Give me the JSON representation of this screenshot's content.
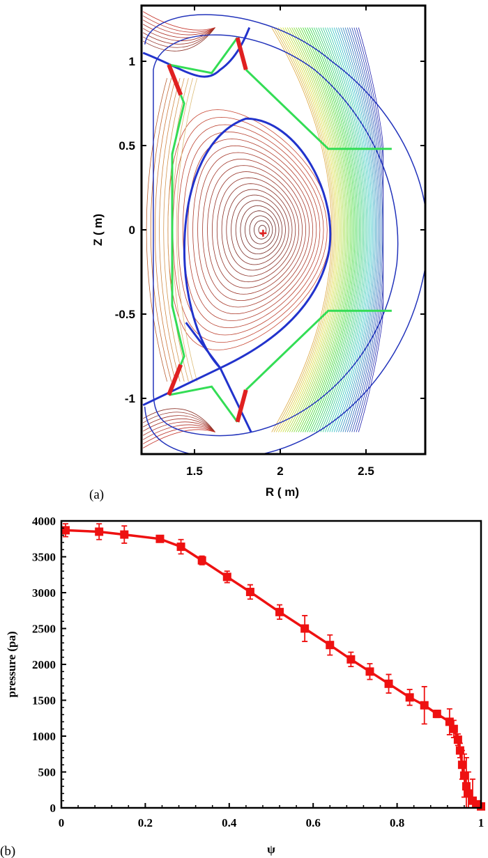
{
  "chart_data": [
    {
      "type": "contour",
      "panel_label": "(a)",
      "xlabel": "R ( m)",
      "ylabel": "Z ( m)",
      "xlim": [
        1.19,
        2.86
      ],
      "ylim": [
        -1.33,
        1.33
      ],
      "xticks": [
        "1.5",
        "2",
        "2.5"
      ],
      "xtick_values": [
        1.5,
        2,
        2.5
      ],
      "yticks": [
        "1",
        "0.5",
        "0",
        "-0.5",
        "-1"
      ],
      "ytick_values": [
        1,
        0.5,
        0,
        -0.5,
        -1
      ],
      "magnetic_axis": [
        1.9,
        -0.02
      ],
      "colors": {
        "separatrix": "#2233cc",
        "vessel": "#2233bb",
        "limiter": "#33dd55",
        "plates": "#e02020",
        "axis_marker": "#e02020"
      }
    },
    {
      "type": "line",
      "panel_label": "(b)",
      "xlabel": "ψ",
      "ylabel": "pressure (pa)",
      "xlim": [
        0,
        1
      ],
      "ylim": [
        0,
        4000
      ],
      "xticks": [
        "0",
        "0.2",
        "0.4",
        "0.6",
        "0.8",
        "1"
      ],
      "xtick_values": [
        0,
        0.2,
        0.4,
        0.6,
        0.8,
        1
      ],
      "yticks": [
        "0",
        "500",
        "1000",
        "1500",
        "2000",
        "2500",
        "3000",
        "3500",
        "4000"
      ],
      "ytick_values": [
        0,
        500,
        1000,
        1500,
        2000,
        2500,
        3000,
        3500,
        4000
      ],
      "grid": false,
      "color": "#ee1111",
      "marker": "square",
      "x": [
        0.01,
        0.09,
        0.15,
        0.235,
        0.285,
        0.335,
        0.395,
        0.45,
        0.52,
        0.58,
        0.64,
        0.69,
        0.735,
        0.78,
        0.83,
        0.865,
        0.895,
        0.925,
        0.935,
        0.945,
        0.95,
        0.955,
        0.96,
        0.965,
        0.97,
        0.98,
        0.99,
        1.0
      ],
      "y": [
        3870,
        3850,
        3810,
        3750,
        3640,
        3450,
        3220,
        3010,
        2730,
        2500,
        2270,
        2070,
        1900,
        1730,
        1540,
        1430,
        1310,
        1200,
        1100,
        950,
        800,
        600,
        450,
        300,
        200,
        100,
        50,
        20
      ],
      "yerr": [
        90,
        110,
        120,
        40,
        100,
        60,
        80,
        100,
        100,
        180,
        140,
        100,
        110,
        130,
        110,
        260,
        50,
        180,
        120,
        80,
        100,
        200,
        300,
        400,
        300,
        300,
        30,
        20
      ]
    }
  ]
}
